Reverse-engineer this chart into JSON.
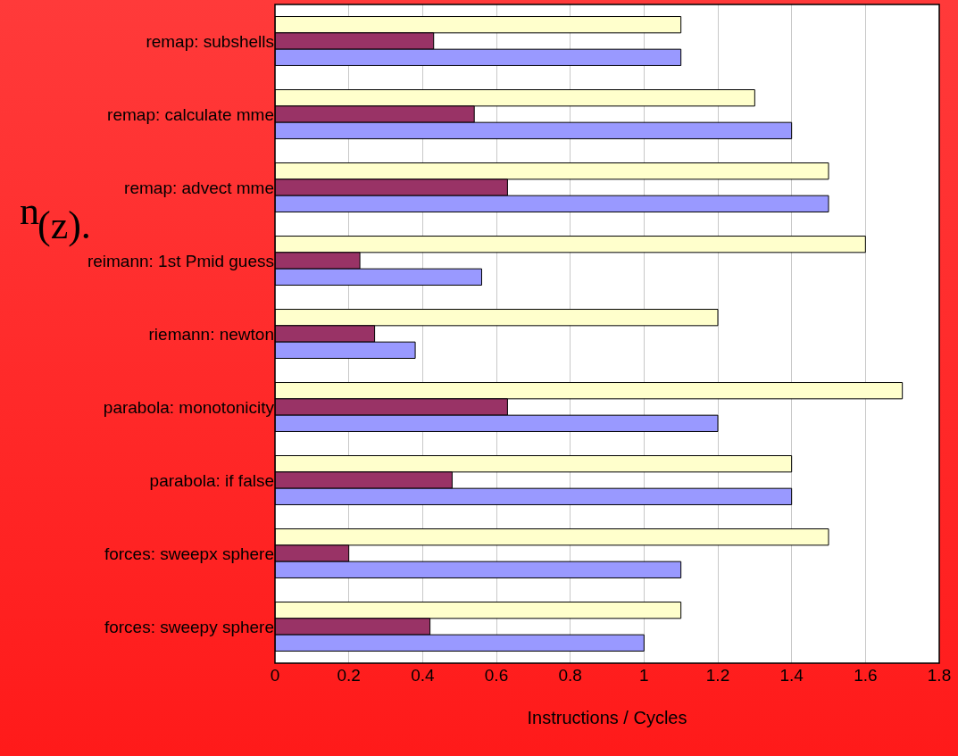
{
  "chart_data": {
    "type": "bar",
    "orientation": "horizontal",
    "xlabel": "Instructions / Cycles",
    "categories": [
      "remap: subshells",
      "remap: calculate mme",
      "remap: advect mme",
      "reimann: 1st Pmid guess",
      "riemann: newton",
      "parabola: monotonicity",
      "parabola: if false",
      "forces: sweepx sphere",
      "forces: sweepy sphere"
    ],
    "series": [
      {
        "color": "#ffffcc",
        "values": [
          1.1,
          1.3,
          1.5,
          1.6,
          1.2,
          1.7,
          1.4,
          1.5,
          1.1
        ]
      },
      {
        "color": "#993366",
        "values": [
          0.43,
          0.54,
          0.63,
          0.23,
          0.27,
          0.63,
          0.48,
          0.2,
          0.42
        ]
      },
      {
        "color": "#9999ff",
        "values": [
          1.1,
          1.4,
          1.5,
          0.56,
          0.38,
          1.2,
          1.4,
          1.1,
          1.0
        ]
      }
    ],
    "xlim": [
      0,
      1.8
    ],
    "xticks": [
      0,
      0.2,
      0.4,
      0.6,
      0.8,
      1,
      1.2,
      1.4,
      1.6,
      1.8
    ],
    "grid": "x",
    "annotations": [
      "n",
      "(z)."
    ]
  }
}
